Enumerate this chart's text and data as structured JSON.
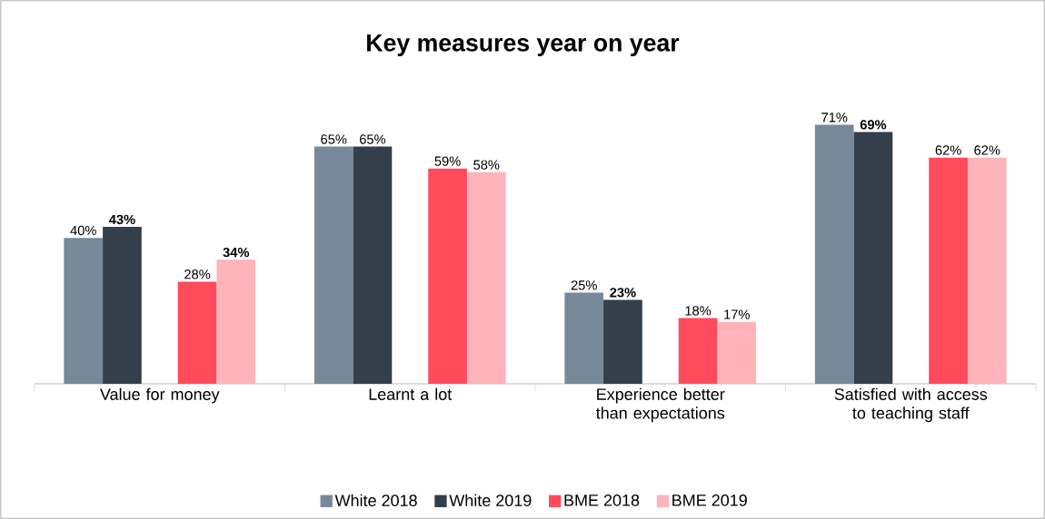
{
  "chart_data": {
    "type": "bar",
    "title": "Key measures year on year",
    "categories": [
      "Value for money",
      "Learnt a lot",
      "Experience better than expectations",
      "Satisfied with access to teaching staff"
    ],
    "series": [
      {
        "name": "White 2018",
        "color": "#778899",
        "values": [
          40,
          65,
          25,
          71
        ],
        "value_labels": [
          "40%",
          "65%",
          "25%",
          "71%"
        ]
      },
      {
        "name": "White 2019",
        "color": "#333f4a",
        "values": [
          43,
          65,
          23,
          69
        ],
        "value_labels": [
          "**43%**",
          "65%",
          "**23%**",
          "**69%**"
        ]
      },
      {
        "name": "BME 2018",
        "color": "#ff4b5c",
        "values": [
          28,
          59,
          18,
          62
        ],
        "value_labels": [
          "28%",
          "59%",
          "18%",
          "62%"
        ]
      },
      {
        "name": "BME 2019",
        "color": "#ffb3ba",
        "values": [
          34,
          58,
          17,
          62
        ],
        "value_labels": [
          "**34%**",
          "58%",
          "17%",
          "62%"
        ]
      }
    ],
    "legend": "bottom"
  }
}
